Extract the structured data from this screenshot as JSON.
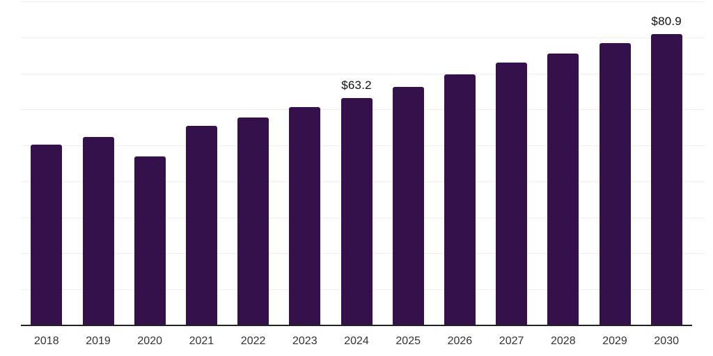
{
  "chart_data": {
    "type": "bar",
    "categories": [
      "2018",
      "2019",
      "2020",
      "2021",
      "2022",
      "2023",
      "2024",
      "2025",
      "2026",
      "2027",
      "2028",
      "2029",
      "2030"
    ],
    "values": [
      50.2,
      52.3,
      46.9,
      55.4,
      57.8,
      60.7,
      63.2,
      66.2,
      69.7,
      73.1,
      75.6,
      78.4,
      80.9
    ],
    "labeled_points": [
      {
        "category": "2024",
        "label": "$63.2"
      },
      {
        "category": "2030",
        "label": "$80.9"
      }
    ],
    "ylim": [
      0,
      90
    ],
    "gridline_step": 10,
    "grid": true,
    "legend": false,
    "y_tick_labels_visible": false,
    "colors": {
      "bar": "#35114B",
      "axis": "#222222",
      "gridline": "#F0F0F0",
      "data_label": "#111111",
      "tick_label": "#333333"
    }
  }
}
